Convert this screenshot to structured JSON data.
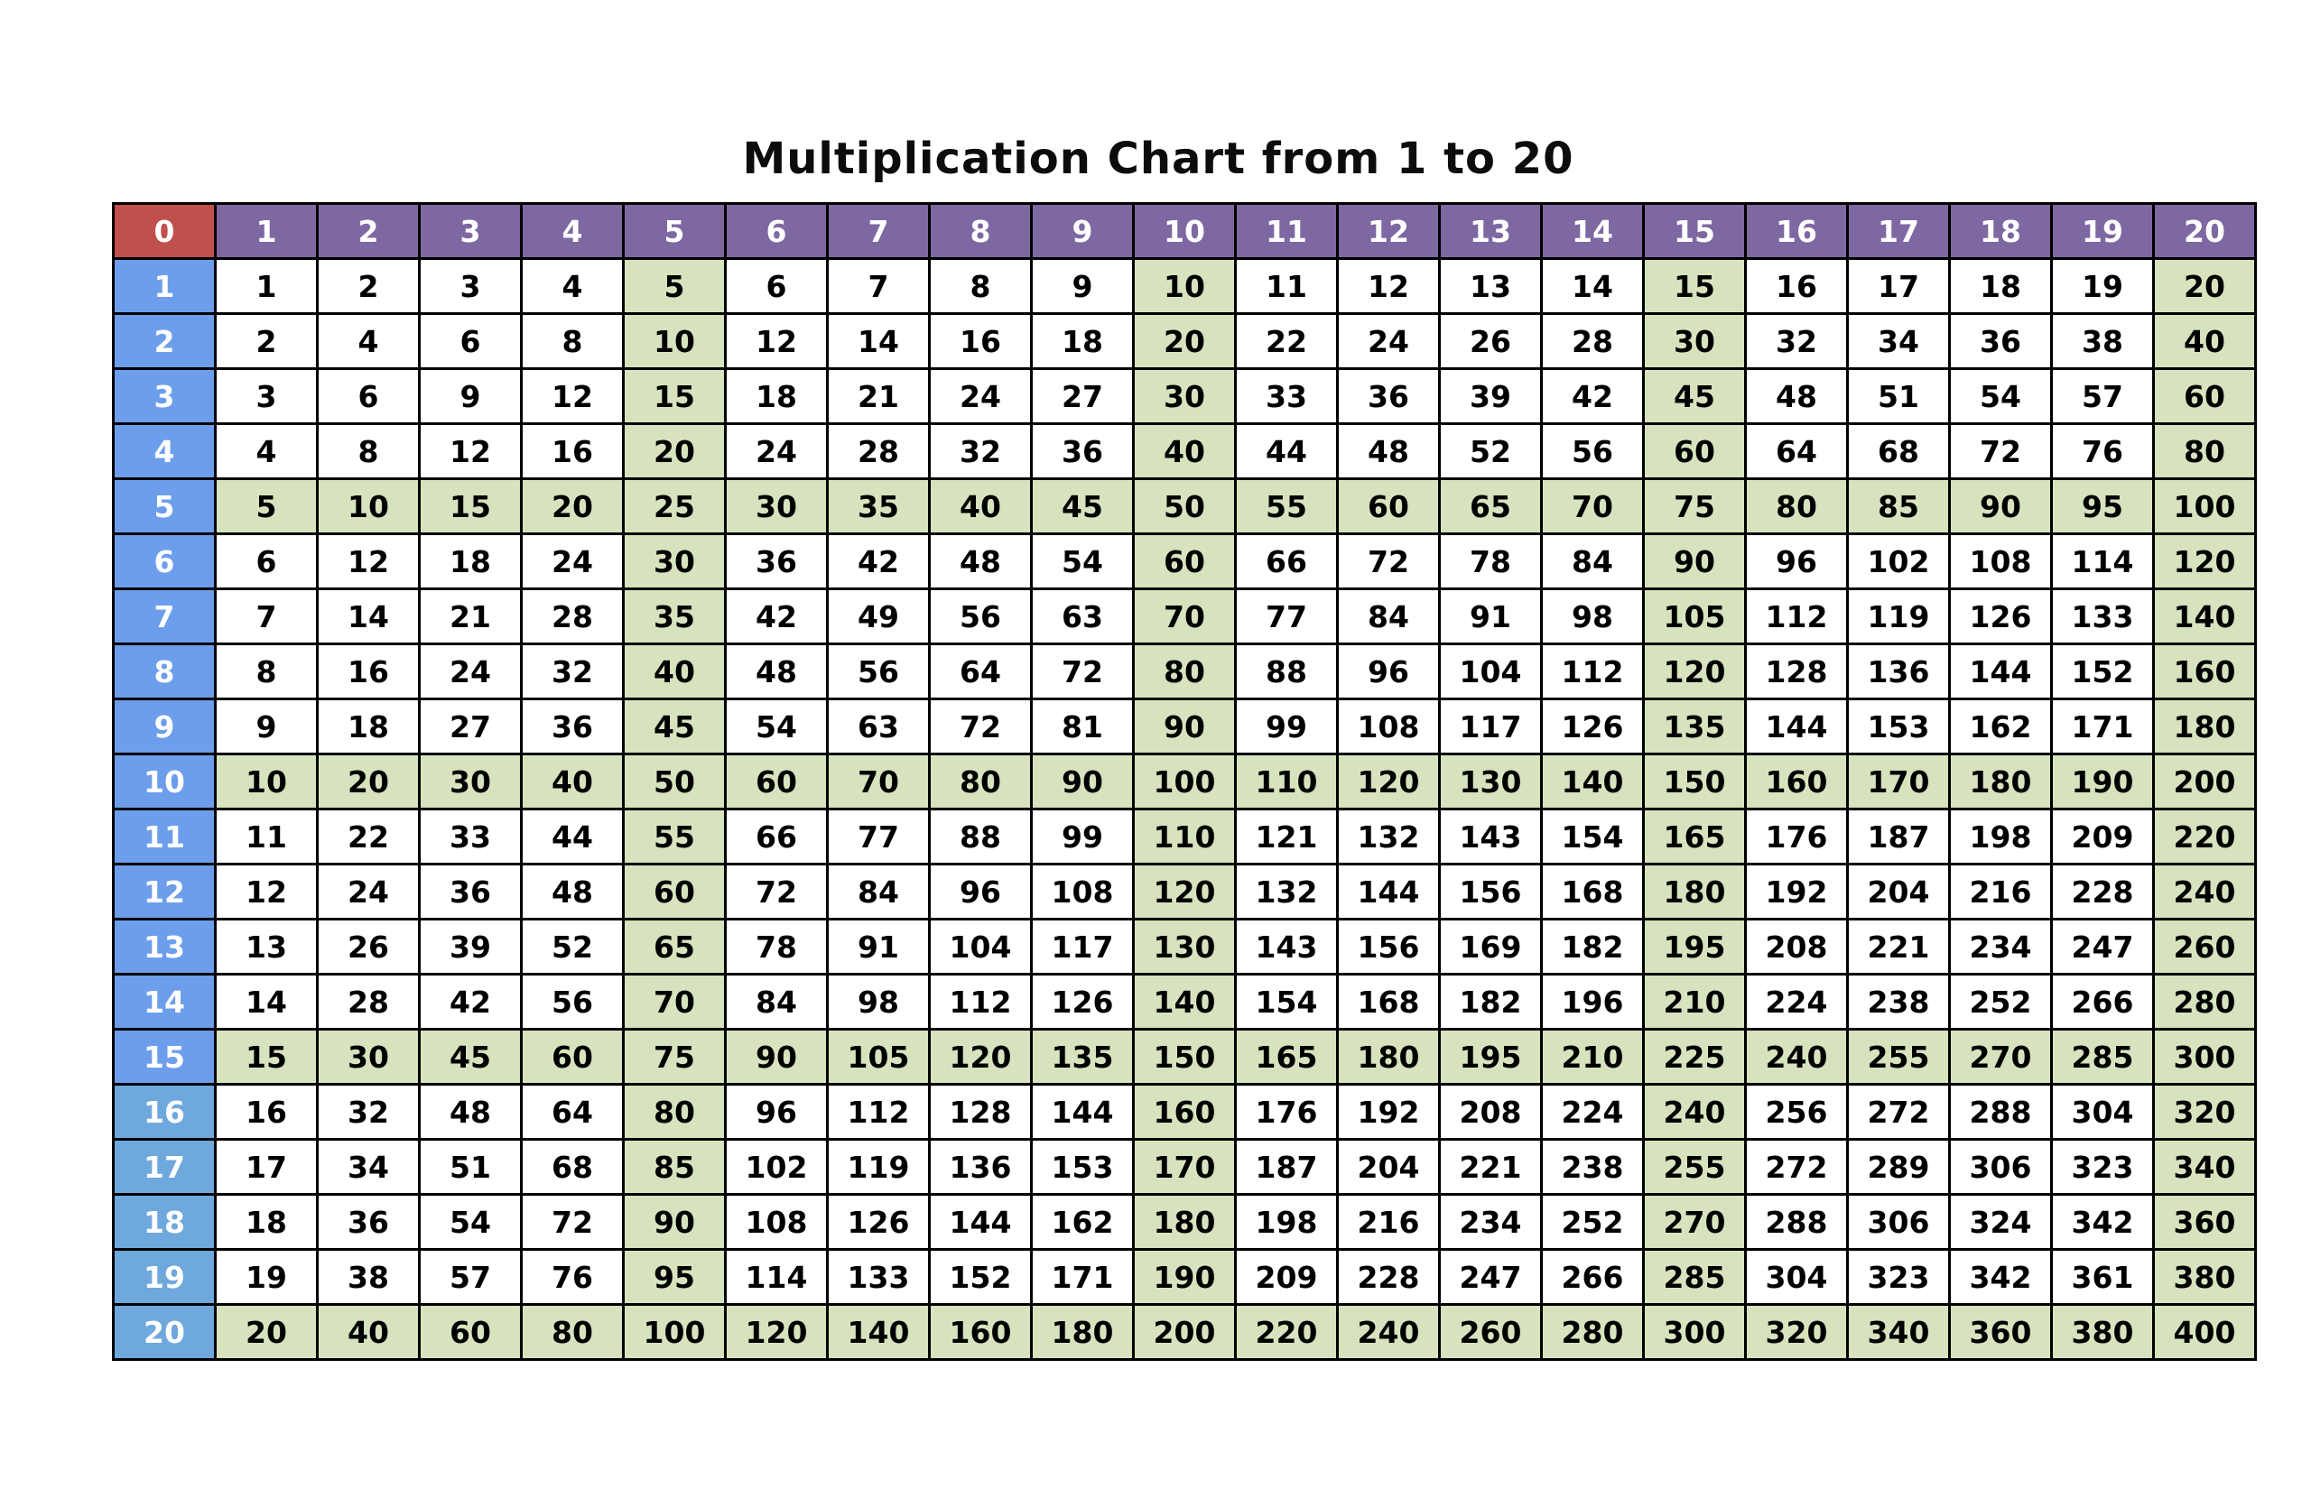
{
  "title": "Multiplication Chart from 1 to 20",
  "colors": {
    "background": "#FFFFFF",
    "red": "#C0504D",
    "purple": "#7E68A2",
    "blue": "#6D9EEB",
    "blue_light": "#6FA8DC",
    "green": "#D6E3BE",
    "grid": "#000000",
    "header_text": "#FFFFFF",
    "cell_text": "#000000"
  },
  "table": {
    "corner_label": "0",
    "column_headers": [
      "1",
      "2",
      "3",
      "4",
      "5",
      "6",
      "7",
      "8",
      "9",
      "10",
      "11",
      "12",
      "13",
      "14",
      "15",
      "16",
      "17",
      "18",
      "19",
      "20"
    ],
    "row_headers": [
      "1",
      "2",
      "3",
      "4",
      "5",
      "6",
      "7",
      "8",
      "9",
      "10",
      "11",
      "12",
      "13",
      "14",
      "15",
      "16",
      "17",
      "18",
      "19",
      "20"
    ],
    "highlight_step": 5,
    "light_blue_from_row": 16,
    "rows": [
      [
        1,
        2,
        3,
        4,
        5,
        6,
        7,
        8,
        9,
        10,
        11,
        12,
        13,
        14,
        15,
        16,
        17,
        18,
        19,
        20
      ],
      [
        2,
        4,
        6,
        8,
        10,
        12,
        14,
        16,
        18,
        20,
        22,
        24,
        26,
        28,
        30,
        32,
        34,
        36,
        38,
        40
      ],
      [
        3,
        6,
        9,
        12,
        15,
        18,
        21,
        24,
        27,
        30,
        33,
        36,
        39,
        42,
        45,
        48,
        51,
        54,
        57,
        60
      ],
      [
        4,
        8,
        12,
        16,
        20,
        24,
        28,
        32,
        36,
        40,
        44,
        48,
        52,
        56,
        60,
        64,
        68,
        72,
        76,
        80
      ],
      [
        5,
        10,
        15,
        20,
        25,
        30,
        35,
        40,
        45,
        50,
        55,
        60,
        65,
        70,
        75,
        80,
        85,
        90,
        95,
        100
      ],
      [
        6,
        12,
        18,
        24,
        30,
        36,
        42,
        48,
        54,
        60,
        66,
        72,
        78,
        84,
        90,
        96,
        102,
        108,
        114,
        120
      ],
      [
        7,
        14,
        21,
        28,
        35,
        42,
        49,
        56,
        63,
        70,
        77,
        84,
        91,
        98,
        105,
        112,
        119,
        126,
        133,
        140
      ],
      [
        8,
        16,
        24,
        32,
        40,
        48,
        56,
        64,
        72,
        80,
        88,
        96,
        104,
        112,
        120,
        128,
        136,
        144,
        152,
        160
      ],
      [
        9,
        18,
        27,
        36,
        45,
        54,
        63,
        72,
        81,
        90,
        99,
        108,
        117,
        126,
        135,
        144,
        153,
        162,
        171,
        180
      ],
      [
        10,
        20,
        30,
        40,
        50,
        60,
        70,
        80,
        90,
        100,
        110,
        120,
        130,
        140,
        150,
        160,
        170,
        180,
        190,
        200
      ],
      [
        11,
        22,
        33,
        44,
        55,
        66,
        77,
        88,
        99,
        110,
        121,
        132,
        143,
        154,
        165,
        176,
        187,
        198,
        209,
        220
      ],
      [
        12,
        24,
        36,
        48,
        60,
        72,
        84,
        96,
        108,
        120,
        132,
        144,
        156,
        168,
        180,
        192,
        204,
        216,
        228,
        240
      ],
      [
        13,
        26,
        39,
        52,
        65,
        78,
        91,
        104,
        117,
        130,
        143,
        156,
        169,
        182,
        195,
        208,
        221,
        234,
        247,
        260
      ],
      [
        14,
        28,
        42,
        56,
        70,
        84,
        98,
        112,
        126,
        140,
        154,
        168,
        182,
        196,
        210,
        224,
        238,
        252,
        266,
        280
      ],
      [
        15,
        30,
        45,
        60,
        75,
        90,
        105,
        120,
        135,
        150,
        165,
        180,
        195,
        210,
        225,
        240,
        255,
        270,
        285,
        300
      ],
      [
        16,
        32,
        48,
        64,
        80,
        96,
        112,
        128,
        144,
        160,
        176,
        192,
        208,
        224,
        240,
        256,
        272,
        288,
        304,
        320
      ],
      [
        17,
        34,
        51,
        68,
        85,
        102,
        119,
        136,
        153,
        170,
        187,
        204,
        221,
        238,
        255,
        272,
        289,
        306,
        323,
        340
      ],
      [
        18,
        36,
        54,
        72,
        90,
        108,
        126,
        144,
        162,
        180,
        198,
        216,
        234,
        252,
        270,
        288,
        306,
        324,
        342,
        360
      ],
      [
        19,
        38,
        57,
        76,
        95,
        114,
        133,
        152,
        171,
        190,
        209,
        228,
        247,
        266,
        285,
        304,
        323,
        342,
        361,
        380
      ],
      [
        20,
        40,
        60,
        80,
        100,
        120,
        140,
        160,
        180,
        200,
        220,
        240,
        260,
        280,
        300,
        320,
        340,
        360,
        380,
        400
      ]
    ]
  }
}
